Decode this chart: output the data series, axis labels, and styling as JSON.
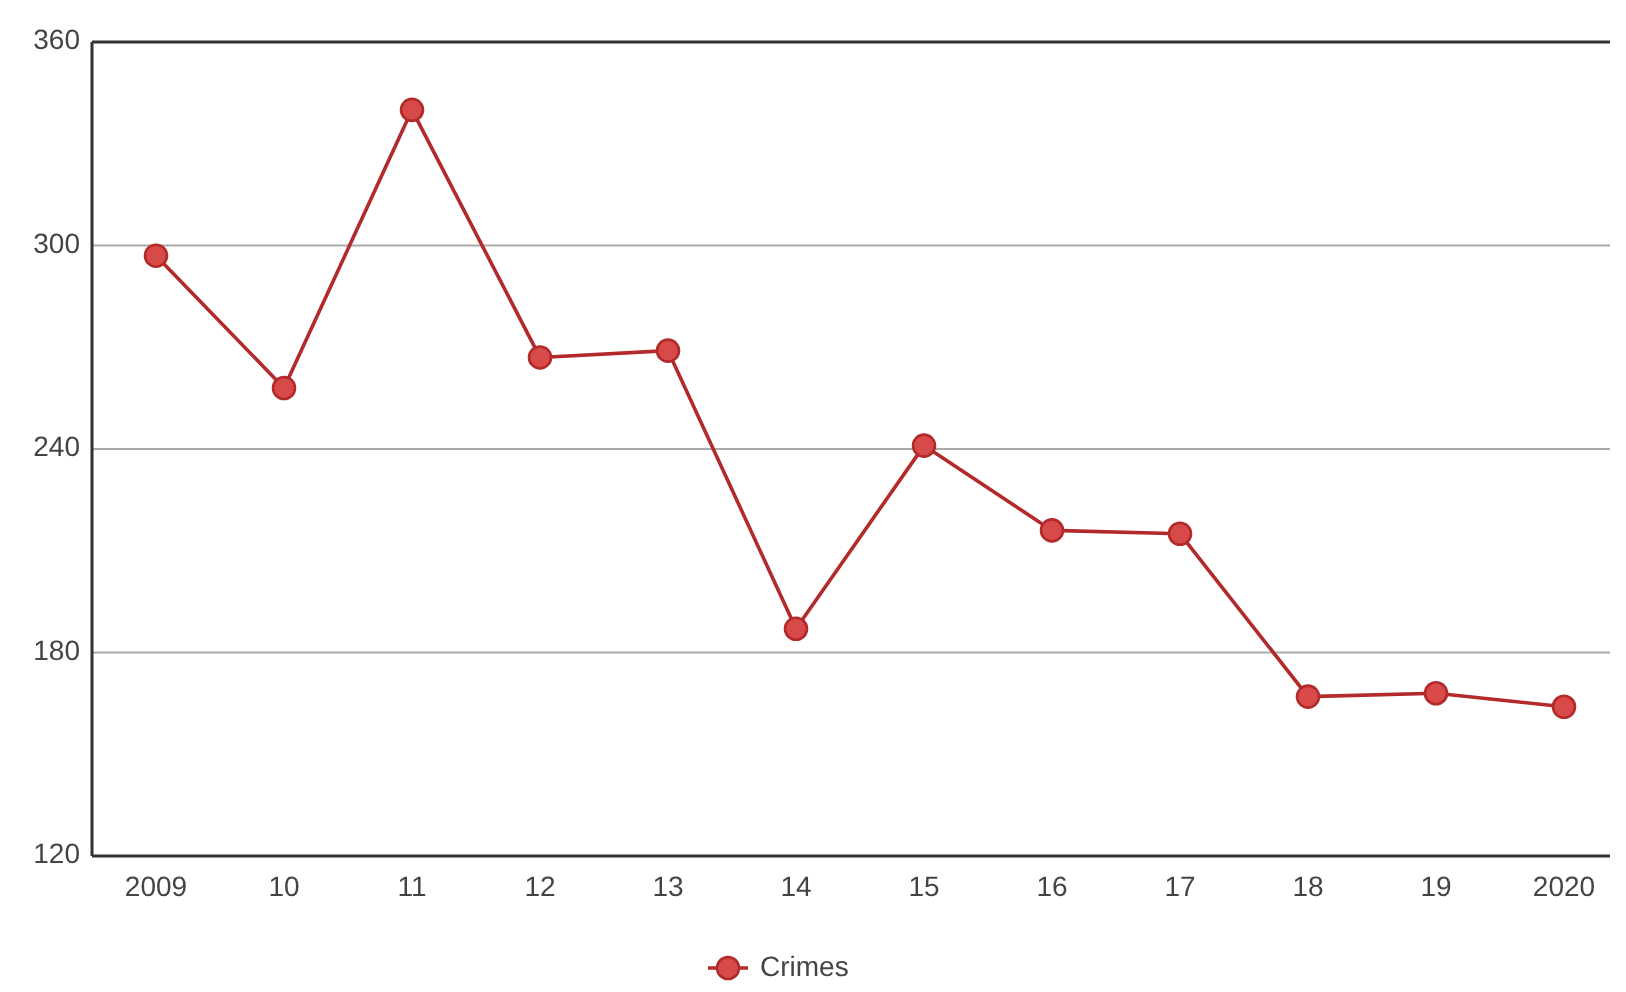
{
  "chart_data": {
    "type": "line",
    "categories": [
      "2009",
      "10",
      "11",
      "12",
      "13",
      "14",
      "15",
      "16",
      "17",
      "18",
      "19",
      "2020"
    ],
    "series": [
      {
        "name": "Crimes",
        "color": "#b22a2a",
        "values": [
          297,
          258,
          340,
          267,
          269,
          187,
          241,
          216,
          215,
          167,
          168,
          164
        ]
      }
    ],
    "ylim": [
      120,
      360
    ],
    "yticks": [
      120,
      180,
      240,
      300,
      360
    ],
    "grid": "y",
    "legend": "bottom",
    "marker": "circle",
    "line_style": "solid"
  }
}
